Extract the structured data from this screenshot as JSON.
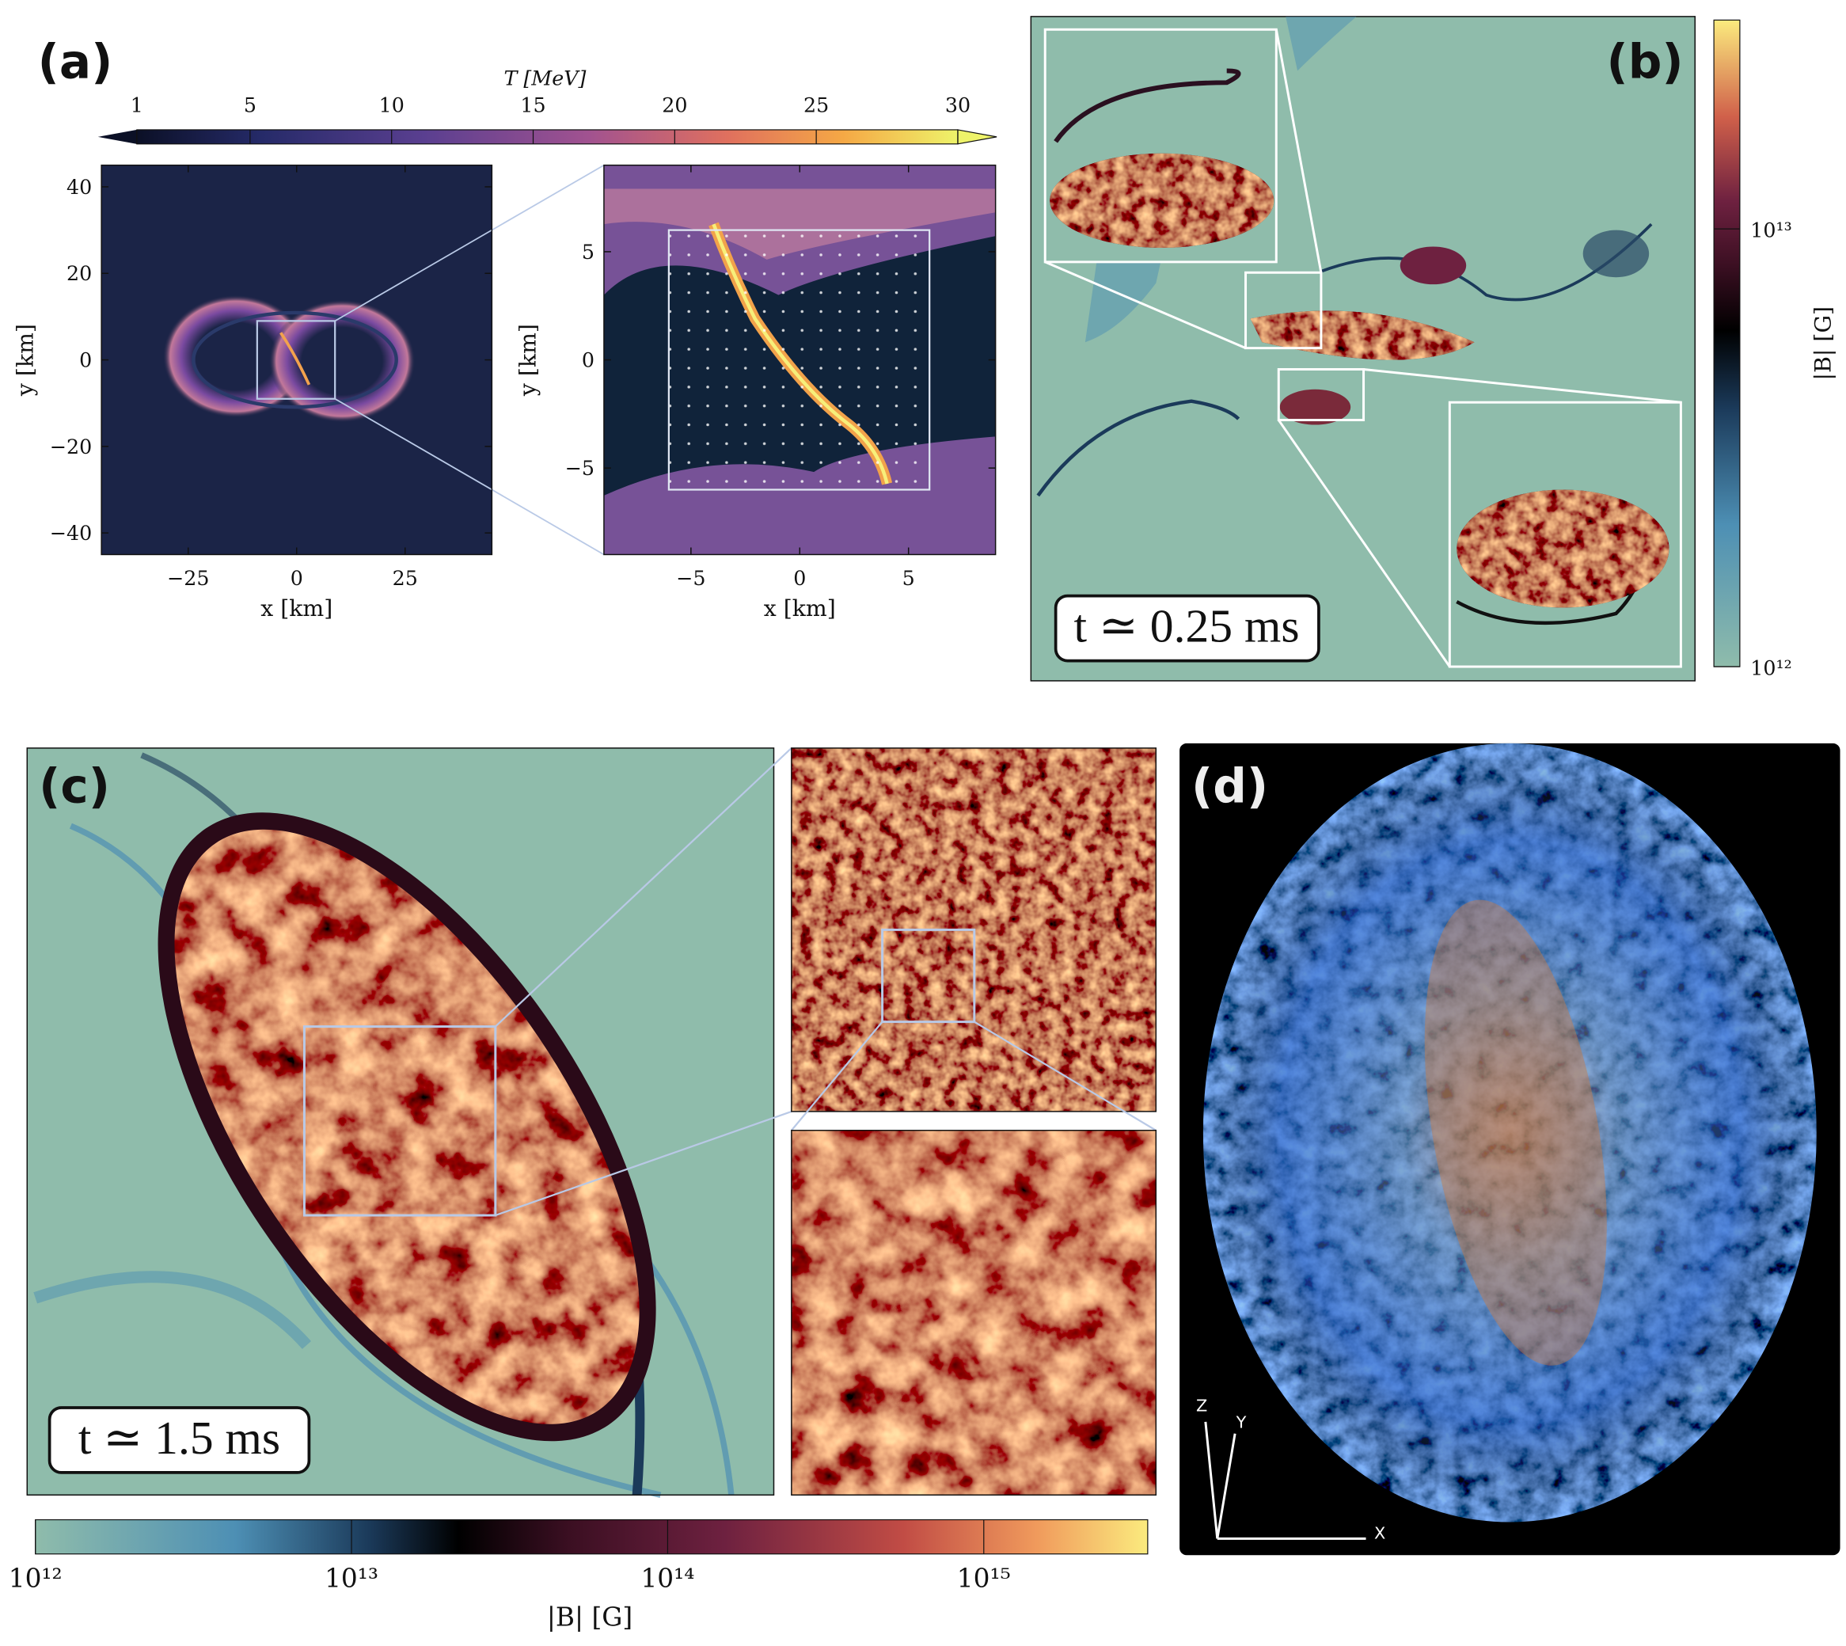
{
  "panels": {
    "a": {
      "label": "(a)",
      "colorbar": {
        "title": "T [MeV]",
        "lim": [
          1,
          30
        ],
        "ticks": [
          1,
          5,
          10,
          15,
          20,
          25,
          30
        ]
      },
      "left_plot": {
        "xlabel": "x [km]",
        "ylabel": "y [km]",
        "xlim": [
          -45,
          45
        ],
        "ylim": [
          -45,
          45
        ],
        "xticks": [
          {
            "value": -25,
            "label": "−25"
          },
          0,
          25
        ],
        "yticks": [
          {
            "value": -40,
            "label": "−40"
          },
          {
            "value": -20,
            "label": "−20"
          },
          0,
          20,
          40
        ]
      },
      "right_plot": {
        "xlabel": "x [km]",
        "ylabel": "y [km]",
        "xlim": [
          -9,
          9
        ],
        "ylim": [
          -9,
          9
        ],
        "xticks": [
          {
            "value": -5,
            "label": "−5"
          },
          0,
          5
        ],
        "yticks": [
          {
            "value": -5,
            "label": "−5"
          },
          0,
          5
        ]
      }
    },
    "b": {
      "label": "(b)",
      "annotation": "t ≃ 0.25 ms",
      "colorbar": {
        "label": "|B| [G]",
        "log_scale": true,
        "lim": [
          1000000000000,
          30000000000000
        ],
        "ticks": [
          {
            "value": 1000000000000,
            "label": "10¹²"
          },
          {
            "value": 10000000000000,
            "label": "10¹³"
          }
        ]
      }
    },
    "c": {
      "label": "(c)",
      "annotation": "t ≃ 1.5 ms",
      "colorbar": {
        "label": "|B| [G]",
        "log_scale": true,
        "lim": [
          1000000000000,
          3300000000000000
        ],
        "ticks": [
          {
            "value": 1000000000000,
            "label": "10¹²"
          },
          {
            "value": 10000000000000,
            "label": "10¹³"
          },
          {
            "value": 100000000000000,
            "label": "10¹⁴"
          },
          {
            "value": 1000000000000000,
            "label": "10¹⁵"
          }
        ]
      }
    },
    "d": {
      "label": "(d)",
      "axes": [
        "Z",
        "Y",
        "X"
      ]
    }
  }
}
